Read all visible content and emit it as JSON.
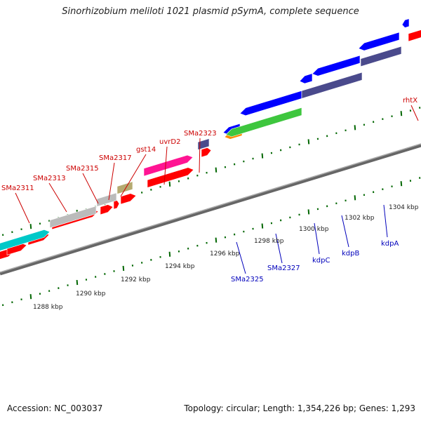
{
  "title": "Sinorhizobium meliloti 1021 plasmid pSymA, complete sequence",
  "footer": {
    "accession": "Accession: NC_003037",
    "summary": "Topology: circular; Length: 1,354,226 bp; Genes: 1,293"
  },
  "colors": {
    "backbone": "#808080",
    "ticks": "#006600",
    "label_forward": "#cc0000",
    "label_reverse": "#0000bb",
    "gene_red": "#ff0000",
    "gene_blue": "#0000ff",
    "gene_navy": "#4a4a8c",
    "gene_green": "#3ec63e",
    "gene_cyan": "#00c8c8",
    "gene_gray": "#bbbbbb",
    "gene_olive": "#b5aa70",
    "gene_pink": "#ff1493",
    "gene_orange": "#ff8c00"
  },
  "tick_labels": [
    "1288 kbp",
    "1290 kbp",
    "1292 kbp",
    "1294 kbp",
    "1296 kbp",
    "1298 kbp",
    "1300 kbp",
    "1302 kbp",
    "1304 kbp"
  ],
  "forward_gene_labels": [
    "SMa2311",
    "SMa2313",
    "SMa2315",
    "SMa2317",
    "gst14",
    "uvrD2",
    "SMa2323",
    "rhtX"
  ],
  "reverse_gene_labels": [
    "SMa2325",
    "SMa2327",
    "kdpC",
    "kdpB",
    "kdpA"
  ]
}
